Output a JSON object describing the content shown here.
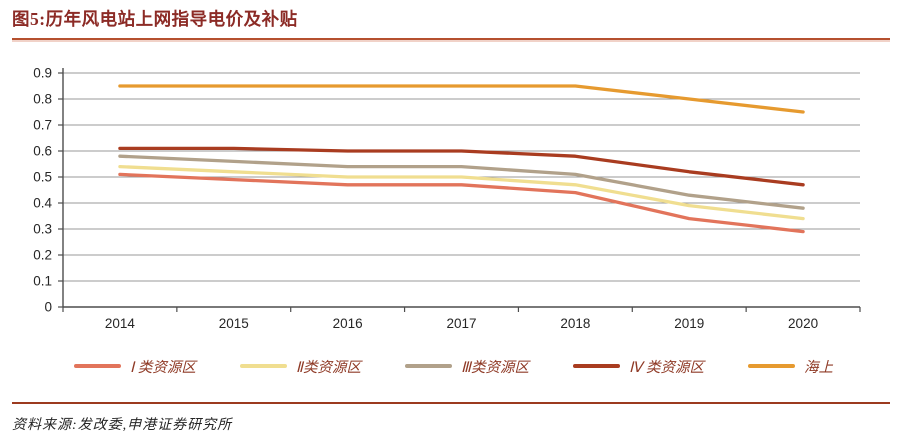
{
  "figure": {
    "title": "图5:历年风电站上网指导电价及补贴",
    "source": "资料来源:发改委,申港证券研究所"
  },
  "accent_colors": {
    "title_text": "#8C2B26",
    "title_rule": "#B5502F",
    "footer_rule": "#9C3A1F",
    "legend_text": "#8F3A26",
    "gridline": "#999999",
    "axis": "#4D4D4D"
  },
  "chart_data": {
    "type": "line",
    "x": [
      2014,
      2015,
      2016,
      2017,
      2018,
      2019,
      2020
    ],
    "series": [
      {
        "name": "Ⅰ 类资源区",
        "color": "#E2745B",
        "values": [
          0.51,
          0.49,
          0.47,
          0.47,
          0.44,
          0.34,
          0.29
        ]
      },
      {
        "name": "Ⅱ类资源区",
        "color": "#F0DE90",
        "values": [
          0.54,
          0.52,
          0.5,
          0.5,
          0.47,
          0.39,
          0.34
        ]
      },
      {
        "name": "Ⅲ类资源区",
        "color": "#B1A18A",
        "values": [
          0.58,
          0.56,
          0.54,
          0.54,
          0.51,
          0.43,
          0.38
        ]
      },
      {
        "name": "Ⅳ 类资源区",
        "color": "#A93C20",
        "values": [
          0.61,
          0.61,
          0.6,
          0.6,
          0.58,
          0.52,
          0.47
        ]
      },
      {
        "name": "海上",
        "color": "#E69A2F",
        "values": [
          0.85,
          0.85,
          0.85,
          0.85,
          0.85,
          0.8,
          0.75
        ]
      }
    ],
    "ylim": [
      0,
      0.9
    ],
    "ytick_step": 0.1,
    "xlabel": "",
    "ylabel": "",
    "grid": "horizontal",
    "legend_position": "bottom"
  }
}
